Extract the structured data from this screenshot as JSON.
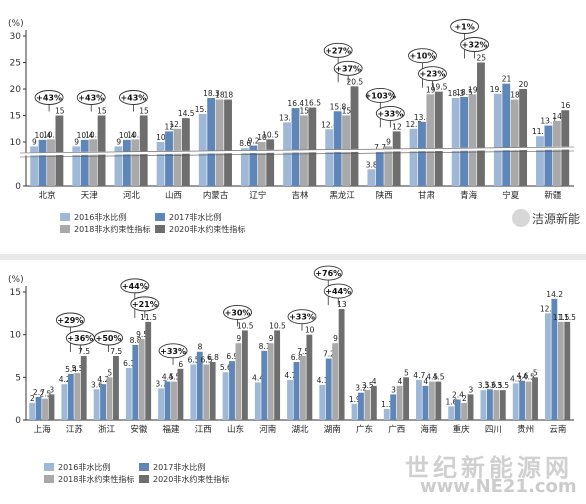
{
  "chart_data": [
    {
      "type": "bar",
      "unit": "(%)",
      "categories": [
        "北京",
        "天津",
        "河北",
        "山西",
        "内蒙古",
        "辽宁",
        "吉林",
        "黑龙江",
        "陕西",
        "甘肃",
        "青海",
        "宁夏",
        "新疆"
      ],
      "series": [
        {
          "name": "2016非水比例",
          "color": "#9fb8d6",
          "values": [
            9.0,
            9.0,
            9.0,
            10.0,
            15.3,
            8.6,
            13.7,
            12.4,
            3.8,
            12.5,
            18.3,
            19.1,
            11.1
          ]
        },
        {
          "name": "2017非水比例",
          "color": "#5f86b8",
          "values": [
            10.4,
            10.4,
            10.4,
            12.0,
            18.3,
            9.2,
            16.4,
            15.8,
            7.7,
            13.8,
            18.5,
            21.0,
            13.1
          ]
        },
        {
          "name": "2018非水约束性指标",
          "color": "#a9a9a9",
          "values": [
            10.5,
            10.5,
            10.5,
            12.5,
            18.0,
            10.0,
            15.0,
            15.0,
            9.0,
            19.0,
            19.0,
            18.0,
            14.0
          ]
        },
        {
          "name": "2020非水约束性指标",
          "color": "#6e6e6e",
          "values": [
            15.0,
            15.0,
            15.0,
            14.5,
            18.0,
            10.5,
            16.5,
            20.5,
            12.0,
            19.5,
            25.0,
            20.0,
            16.0
          ]
        }
      ],
      "yticks": [
        0,
        10,
        15,
        20,
        25,
        30
      ],
      "growth": [
        "+43%",
        "+43%",
        "+43%",
        "",
        "",
        "",
        "",
        "+27%|+37%",
        "+103%|+33%",
        "+10%|+23%",
        "+1%|+32%",
        "",
        ""
      ],
      "axis_break": true,
      "legend_position": "bottom-left"
    },
    {
      "type": "bar",
      "unit": "(%)",
      "categories": [
        "上海",
        "江苏",
        "浙江",
        "安徽",
        "福建",
        "江西",
        "山东",
        "河南",
        "湖北",
        "湖南",
        "广东",
        "广西",
        "海南",
        "重庆",
        "四川",
        "贵州",
        "云南"
      ],
      "series": [
        {
          "name": "2016非水比例",
          "color": "#9fb8d6",
          "values": [
            2.0,
            4.2,
            3.6,
            6.1,
            3.7,
            6.5,
            5.6,
            4.4,
            4.7,
            4.1,
            1.9,
            1.3,
            4.7,
            1.6,
            3.5,
            4.3,
            12.5
          ]
        },
        {
          "name": "2017非水比例",
          "color": "#5f86b8",
          "values": [
            2.7,
            5.4,
            4.2,
            8.8,
            4.5,
            8.0,
            6.9,
            8.1,
            6.8,
            7.2,
            3.2,
            3.0,
            4.0,
            2.4,
            3.6,
            4.6,
            14.2
          ]
        },
        {
          "name": "2018非水约束性指标",
          "color": "#a9a9a9",
          "values": [
            2.5,
            5.5,
            5.0,
            9.5,
            4.5,
            6.5,
            9.0,
            9.0,
            7.5,
            9.0,
            3.5,
            4.0,
            4.5,
            2.0,
            3.5,
            4.5,
            11.5
          ]
        },
        {
          "name": "2020非水约束性指标",
          "color": "#6e6e6e",
          "values": [
            3.0,
            7.5,
            7.5,
            11.5,
            6.0,
            6.8,
            10.5,
            10.5,
            10.0,
            13.0,
            4.0,
            5.0,
            4.5,
            3.0,
            3.5,
            5.0,
            11.5
          ]
        }
      ],
      "yticks": [
        0,
        5,
        10,
        15
      ],
      "growth": [
        "",
        "+29%|+36%",
        "+50%",
        "+44%|+21%",
        "+33%",
        "",
        "+30%",
        "",
        "+33%",
        "+76%|+44%",
        "",
        "",
        "",
        "",
        "",
        "",
        ""
      ],
      "extra_labels": [
        "",
        "",
        "",
        "",
        "",
        "",
        "",
        "",
        "",
        "",
        "",
        "",
        "",
        "2.5 | 3.0",
        "",
        "",
        ""
      ],
      "legend_position": "bottom-left"
    }
  ],
  "watermark": {
    "brand": "洁源新能",
    "site": "世纪新能源网",
    "url": "www.NE21.com"
  }
}
